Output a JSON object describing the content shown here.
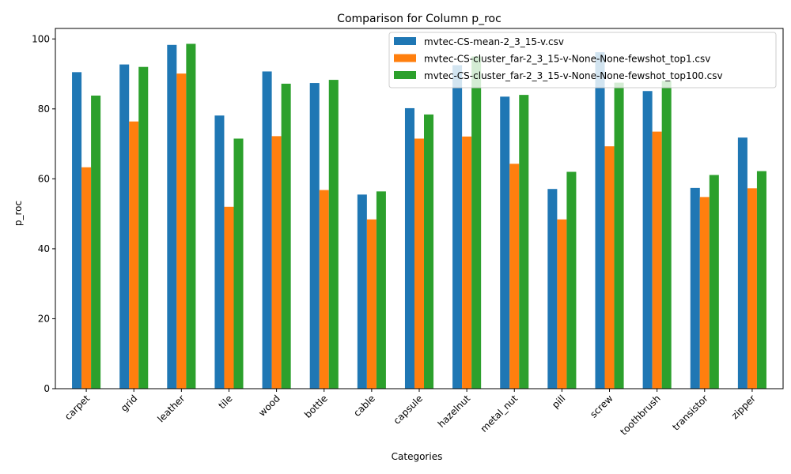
{
  "chart_data": {
    "type": "bar",
    "title": "Comparison for Column p_roc",
    "xlabel": "Categories",
    "ylabel": "p_roc",
    "ylim": [
      0,
      103
    ],
    "yticks": [
      0,
      20,
      40,
      60,
      80,
      100
    ],
    "grid": false,
    "legend_position": "top-right",
    "categories": [
      "carpet",
      "grid",
      "leather",
      "tile",
      "wood",
      "bottle",
      "cable",
      "capsule",
      "hazelnut",
      "metal_nut",
      "pill",
      "screw",
      "toothbrush",
      "transistor",
      "zipper"
    ],
    "series": [
      {
        "name": "mvtec-CS-mean-2_3_15-v.csv",
        "color": "#1f77b4",
        "values": [
          90.5,
          92.7,
          98.3,
          78.1,
          90.7,
          87.4,
          55.5,
          80.2,
          92.5,
          83.5,
          57.1,
          96.2,
          85.1,
          57.4,
          71.8
        ]
      },
      {
        "name": "mvtec-CS-cluster_far-2_3_15-v-None-None-fewshot_top1.csv",
        "color": "#ff7f0e",
        "values": [
          63.3,
          76.4,
          90.1,
          52.0,
          72.2,
          56.8,
          48.4,
          71.5,
          72.1,
          64.3,
          48.4,
          69.3,
          73.5,
          54.8,
          57.3
        ]
      },
      {
        "name": "mvtec-CS-cluster_far-2_3_15-v-None-None-fewshot_top100.csv",
        "color": "#2ca02c",
        "values": [
          83.8,
          92.0,
          98.6,
          71.5,
          87.2,
          88.3,
          56.4,
          78.4,
          95.0,
          84.0,
          62.0,
          87.5,
          88.0,
          61.1,
          62.2
        ]
      }
    ]
  }
}
